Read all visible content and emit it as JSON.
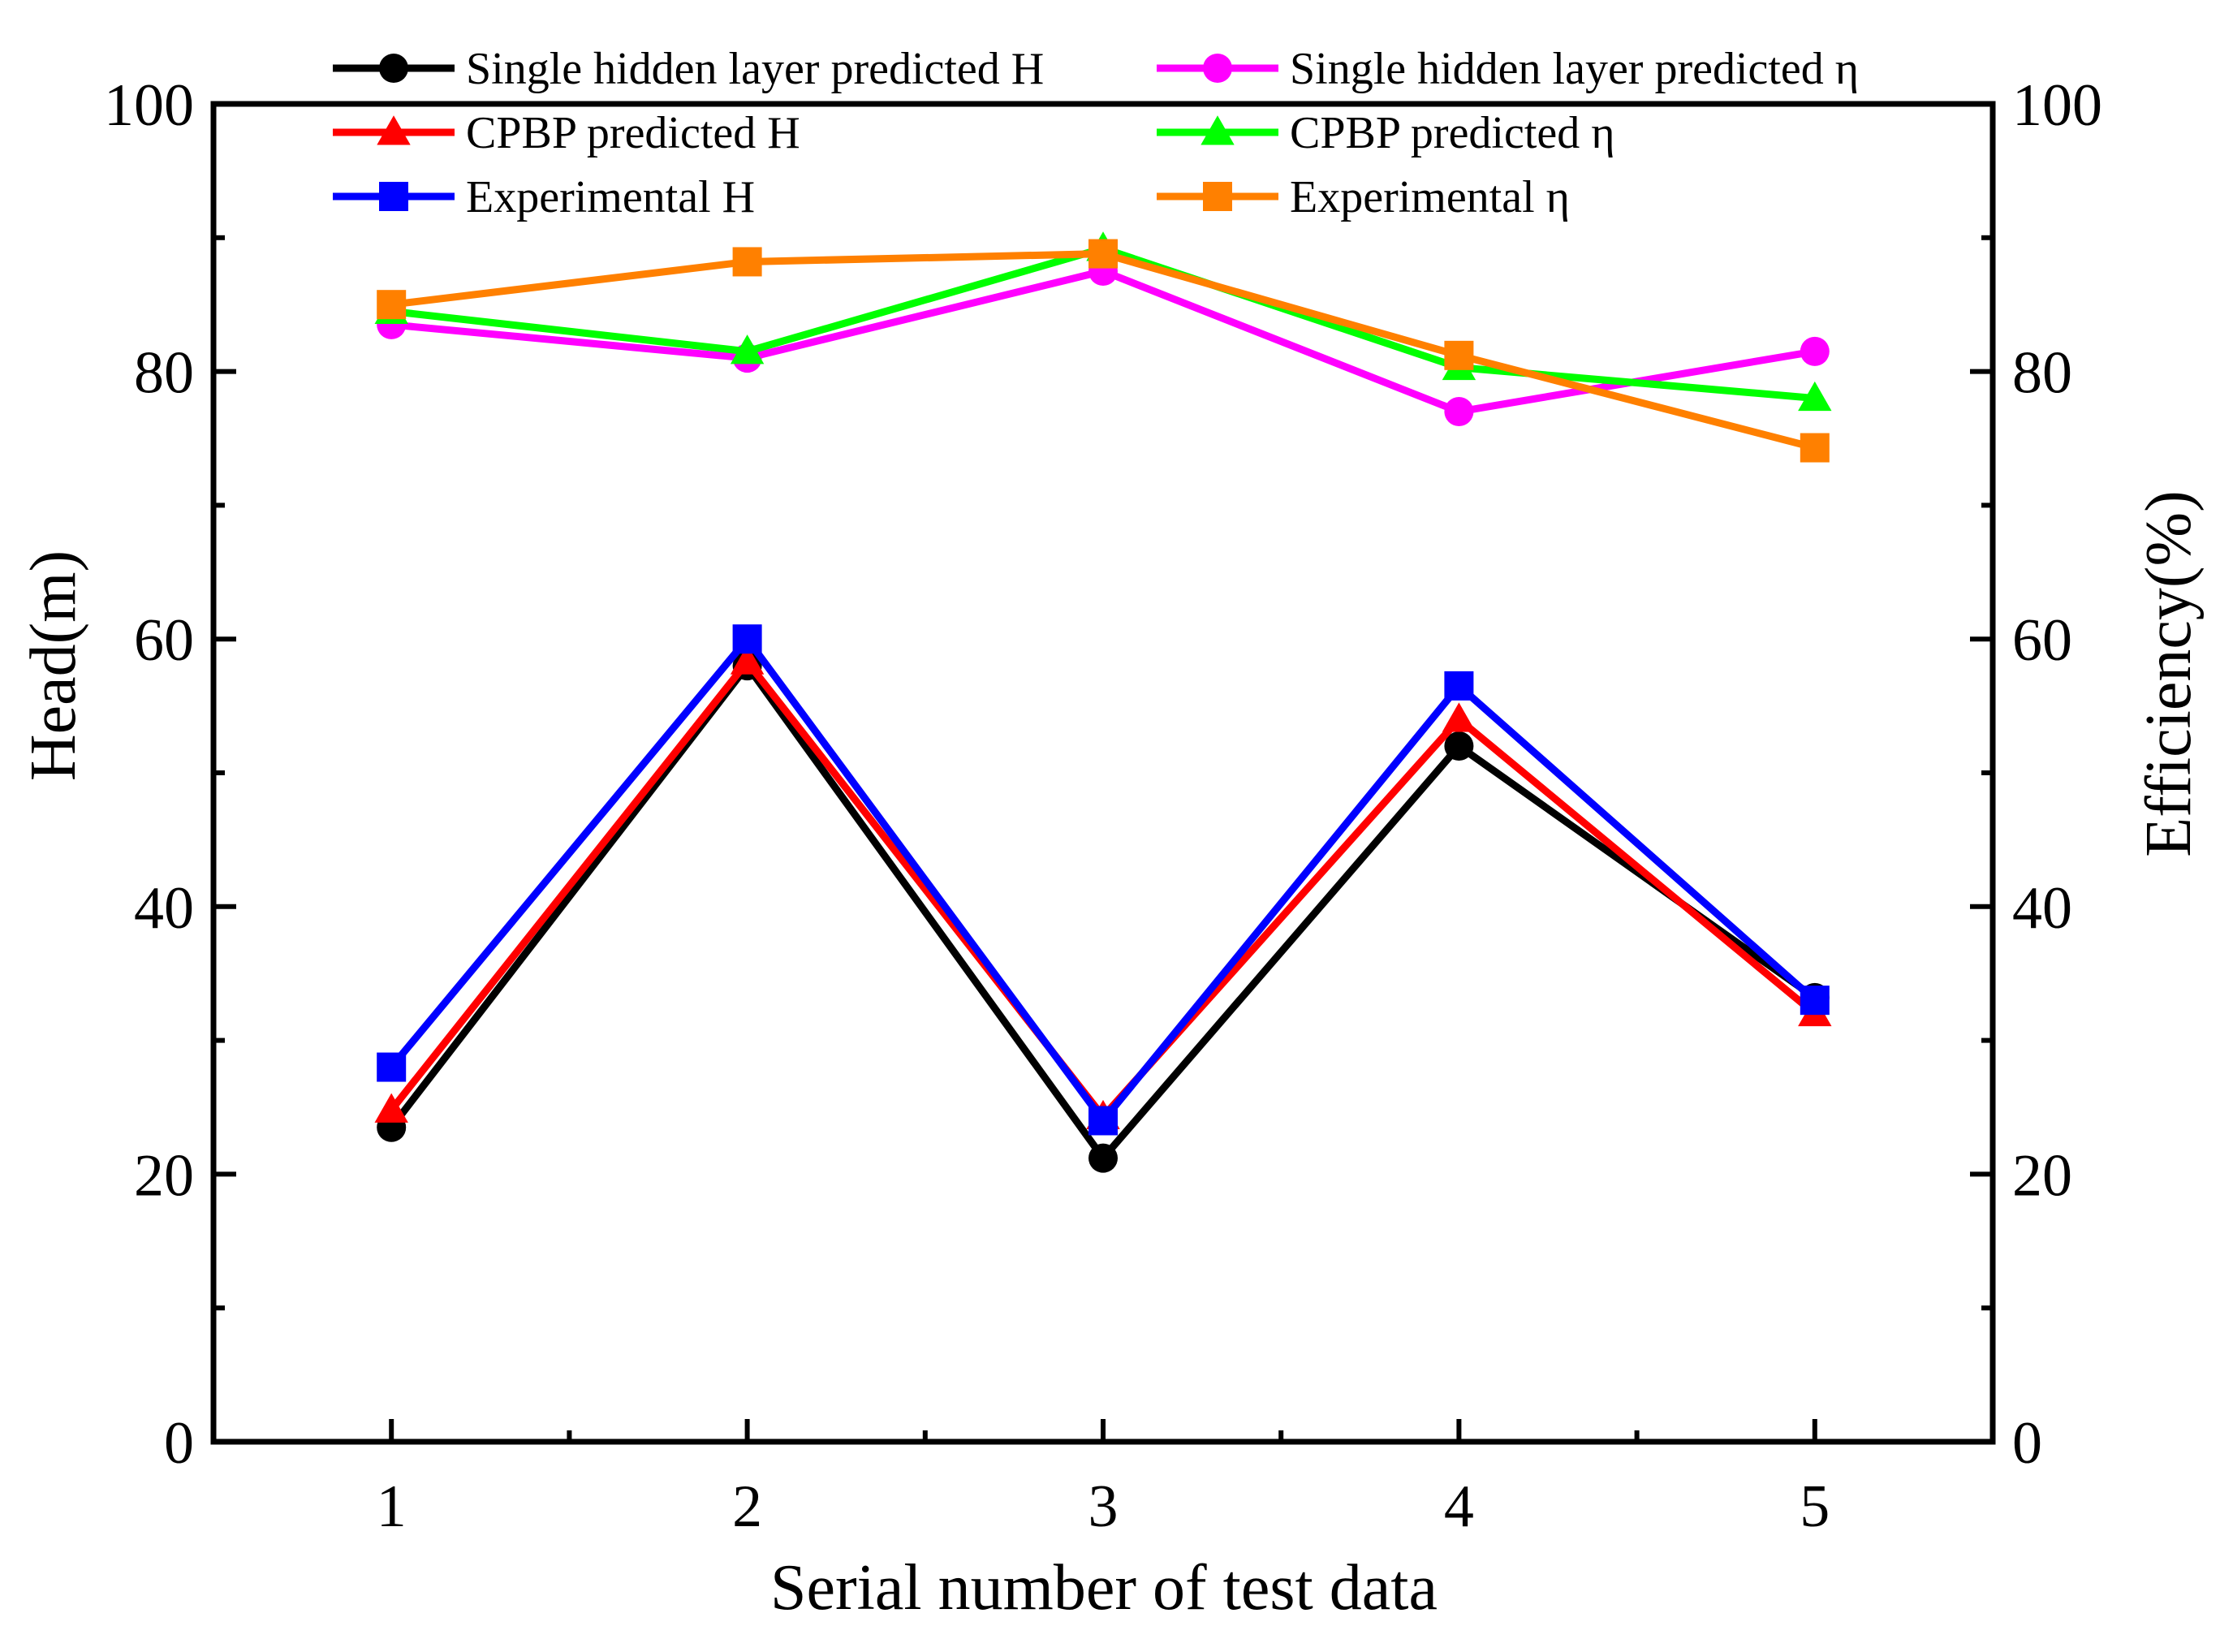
{
  "chart_data": {
    "type": "line",
    "xlabel": "Serial number of test data",
    "ylabel": "Head(m)",
    "y2label": "Efficiency(%)",
    "x": [
      1,
      2,
      3,
      4,
      5
    ],
    "x_ticks": [
      "1",
      "2",
      "3",
      "4",
      "5"
    ],
    "xlim": [
      0.5,
      5.5
    ],
    "ylim": [
      0,
      100
    ],
    "y2lim": [
      0,
      100
    ],
    "y_ticks": [
      "0",
      "20",
      "40",
      "60",
      "80",
      "100"
    ],
    "y2_ticks": [
      "0",
      "20",
      "40",
      "60",
      "80",
      "100"
    ],
    "grid": false,
    "legend_position": "top",
    "series": [
      {
        "name": "Single hidden layer predicted H",
        "axis": "left",
        "marker": "circle",
        "color": "#000000",
        "values": [
          23.5,
          58.0,
          21.2,
          52.0,
          33.2
        ]
      },
      {
        "name": "CPBP predicted H",
        "axis": "left",
        "marker": "triangle",
        "color": "#ff0000",
        "values": [
          24.8,
          58.3,
          24.3,
          54.0,
          32.0
        ]
      },
      {
        "name": "Experimental H",
        "axis": "left",
        "marker": "square",
        "color": "#0000ff",
        "values": [
          28.0,
          60.0,
          24.0,
          56.5,
          33.0
        ]
      },
      {
        "name": "Single hidden layer predicted η",
        "axis": "right",
        "marker": "circle",
        "color": "#ff00ff",
        "values": [
          83.5,
          81.0,
          87.5,
          77.0,
          81.5
        ]
      },
      {
        "name": "CPBP predicted η",
        "axis": "right",
        "marker": "triangle",
        "color": "#00ff00",
        "values": [
          84.5,
          81.5,
          89.2,
          80.3,
          78.0
        ]
      },
      {
        "name": "Experimental η",
        "axis": "right",
        "marker": "square",
        "color": "#ff8000",
        "values": [
          85.0,
          88.2,
          88.8,
          81.2,
          74.3
        ]
      }
    ]
  }
}
